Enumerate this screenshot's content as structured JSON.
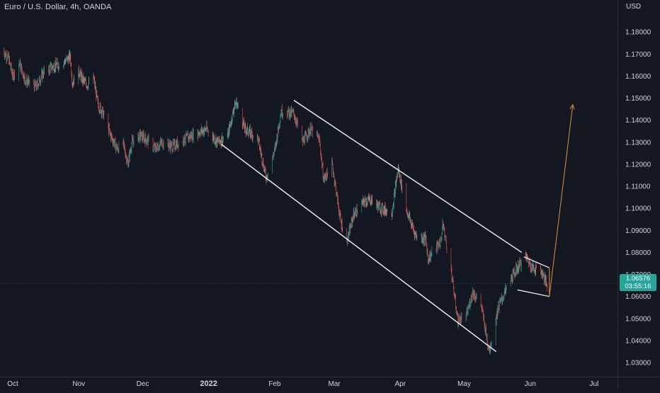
{
  "header": {
    "symbol_title": "Euro / U.S. Dollar, 4h, OANDA",
    "currency": "USD"
  },
  "last_price": {
    "value": "1.06576",
    "countdown": "03:55:16"
  },
  "colors": {
    "background": "#131722",
    "axis_text": "#d1d4dc",
    "candle_up": "#26a69a",
    "candle_down": "#ef5350",
    "channel_lines": "#f5f5f0",
    "projection_arrow": "#e0913a",
    "price_tag_bg": "#26a69a"
  },
  "chart_data": {
    "type": "candlestick",
    "series_name": "",
    "y_axis_ticks": [
      "1.18000",
      "1.17000",
      "1.16000",
      "1.15000",
      "1.14000",
      "1.13000",
      "1.12000",
      "1.11000",
      "1.10000",
      "1.09000",
      "1.08000",
      "1.07000",
      "1.06000",
      "1.05000",
      "1.04000",
      "1.03000"
    ],
    "x_axis_ticks": [
      "Oct",
      "Nov",
      "Dec",
      "2022",
      "Feb",
      "Mar",
      "Apr",
      "May",
      "Jun",
      "Jul"
    ],
    "ylim": [
      1.0236,
      1.1945
    ],
    "xlim": [
      "2021-09-25",
      "2022-07-12"
    ],
    "grid": false,
    "path": [
      [
        "2021-09-26",
        1.172
      ],
      [
        "2021-09-29",
        1.168
      ],
      [
        "2021-10-01",
        1.16
      ],
      [
        "2021-10-04",
        1.166
      ],
      [
        "2021-10-07",
        1.158
      ],
      [
        "2021-10-12",
        1.155
      ],
      [
        "2021-10-15",
        1.161
      ],
      [
        "2021-10-19",
        1.164
      ],
      [
        "2021-10-22",
        1.165
      ],
      [
        "2021-10-26",
        1.167
      ],
      [
        "2021-10-28",
        1.169
      ],
      [
        "2021-10-29",
        1.157
      ],
      [
        "2021-11-01",
        1.162
      ],
      [
        "2021-11-03",
        1.158
      ],
      [
        "2021-11-05",
        1.156
      ],
      [
        "2021-11-08",
        1.159
      ],
      [
        "2021-11-10",
        1.147
      ],
      [
        "2021-11-12",
        1.144
      ],
      [
        "2021-11-16",
        1.133
      ],
      [
        "2021-11-19",
        1.127
      ],
      [
        "2021-11-22",
        1.129
      ],
      [
        "2021-11-24",
        1.12
      ],
      [
        "2021-11-26",
        1.13
      ],
      [
        "2021-11-30",
        1.133
      ],
      [
        "2021-12-03",
        1.131
      ],
      [
        "2021-12-07",
        1.127
      ],
      [
        "2021-12-10",
        1.13
      ],
      [
        "2021-12-15",
        1.128
      ],
      [
        "2021-12-20",
        1.131
      ],
      [
        "2021-12-24",
        1.133
      ],
      [
        "2021-12-31",
        1.136
      ],
      [
        "2022-01-05",
        1.13
      ],
      [
        "2022-01-10",
        1.133
      ],
      [
        "2022-01-13",
        1.146
      ],
      [
        "2022-01-14",
        1.148
      ],
      [
        "2022-01-18",
        1.136
      ],
      [
        "2022-01-24",
        1.132
      ],
      [
        "2022-01-28",
        1.114
      ],
      [
        "2022-02-01",
        1.126
      ],
      [
        "2022-02-04",
        1.144
      ],
      [
        "2022-02-10",
        1.143
      ],
      [
        "2022-02-14",
        1.13
      ],
      [
        "2022-02-18",
        1.136
      ],
      [
        "2022-02-22",
        1.131
      ],
      [
        "2022-02-24",
        1.113
      ],
      [
        "2022-02-28",
        1.12
      ],
      [
        "2022-03-04",
        1.094
      ],
      [
        "2022-03-07",
        1.085
      ],
      [
        "2022-03-10",
        1.097
      ],
      [
        "2022-03-15",
        1.103
      ],
      [
        "2022-03-18",
        1.104
      ],
      [
        "2022-03-23",
        1.1
      ],
      [
        "2022-03-28",
        1.098
      ],
      [
        "2022-03-31",
        1.118
      ],
      [
        "2022-04-04",
        1.099
      ],
      [
        "2022-04-08",
        1.088
      ],
      [
        "2022-04-13",
        1.086
      ],
      [
        "2022-04-14",
        1.077
      ],
      [
        "2022-04-20",
        1.085
      ],
      [
        "2022-04-21",
        1.093
      ],
      [
        "2022-04-25",
        1.071
      ],
      [
        "2022-04-28",
        1.049
      ],
      [
        "2022-05-02",
        1.051
      ],
      [
        "2022-05-05",
        1.062
      ],
      [
        "2022-05-09",
        1.056
      ],
      [
        "2022-05-12",
        1.039
      ],
      [
        "2022-05-13",
        1.036
      ],
      [
        "2022-05-17",
        1.055
      ],
      [
        "2022-05-23",
        1.068
      ],
      [
        "2022-05-26",
        1.073
      ],
      [
        "2022-05-30",
        1.078
      ],
      [
        "2022-06-02",
        1.073
      ],
      [
        "2022-06-06",
        1.072
      ],
      [
        "2022-06-09",
        1.065
      ]
    ],
    "annotations": {
      "channel_upper": [
        [
          "2022-02-10",
          1.149
        ],
        [
          "2022-05-28",
          1.08
        ]
      ],
      "channel_lower": [
        [
          "2022-01-07",
          1.129
        ],
        [
          "2022-05-16",
          1.035
        ]
      ],
      "flag_upper": [
        [
          "2022-05-29",
          1.078
        ],
        [
          "2022-06-10",
          1.073
        ]
      ],
      "flag_lower": [
        [
          "2022-05-26",
          1.063
        ],
        [
          "2022-06-10",
          1.06
        ]
      ],
      "flag_right": [
        [
          "2022-06-10",
          1.073
        ],
        [
          "2022-06-10",
          1.06
        ]
      ],
      "projection_arrow": [
        [
          "2022-06-10",
          1.06
        ],
        [
          "2022-06-21",
          1.147
        ]
      ]
    }
  }
}
